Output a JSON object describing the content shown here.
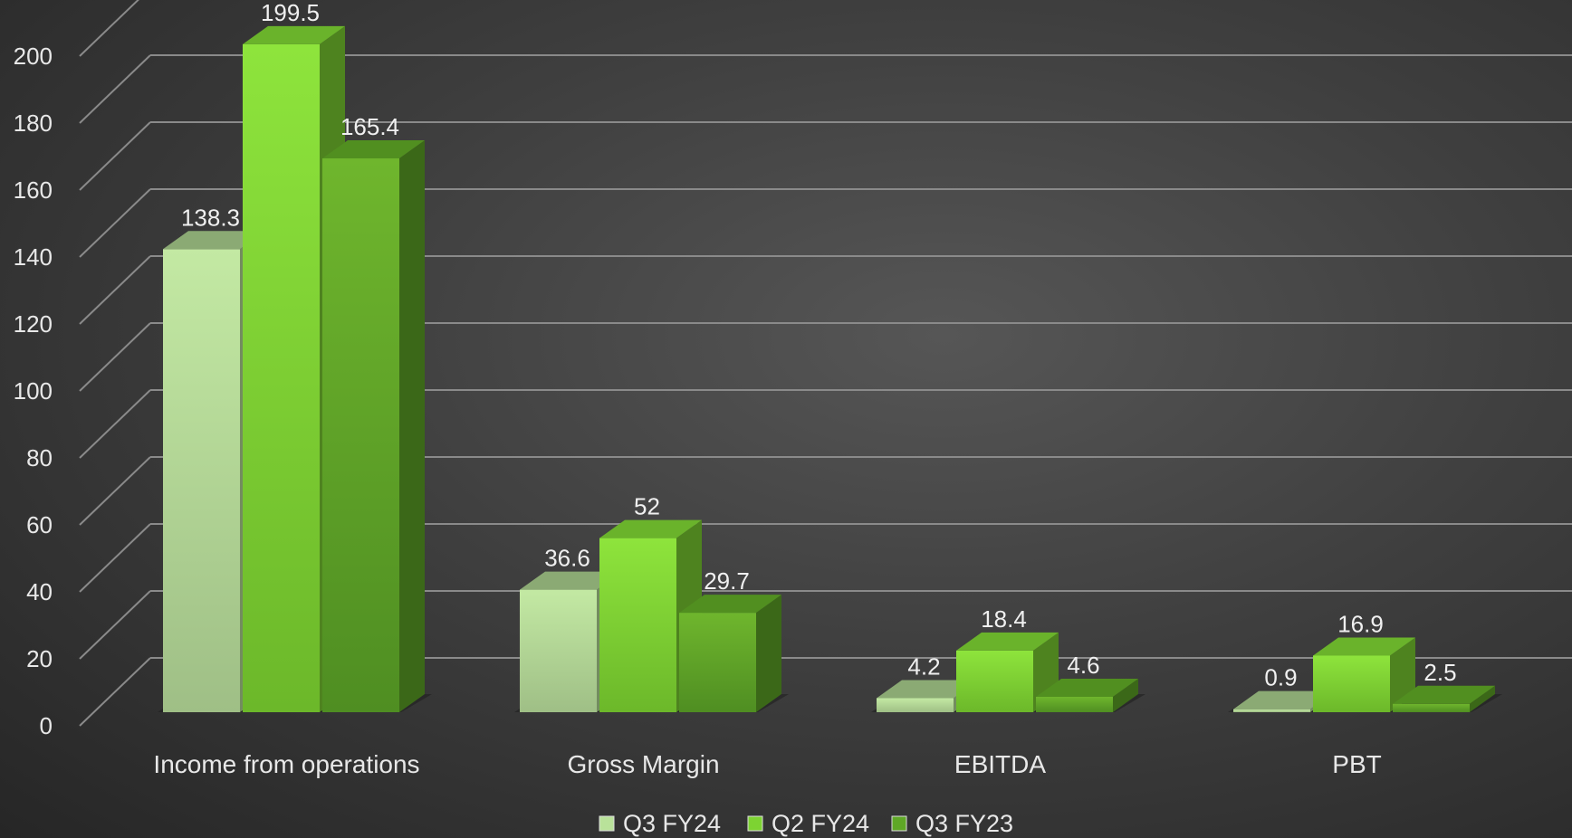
{
  "chart_data": {
    "type": "bar",
    "categories": [
      "Income from operations",
      "Gross Margin",
      "EBITDA",
      "PBT"
    ],
    "series": [
      {
        "name": "Q3 FY24",
        "values": [
          138.3,
          36.6,
          4.2,
          0.9
        ],
        "color": "#b9e29a"
      },
      {
        "name": "Q2 FY24",
        "values": [
          199.5,
          52,
          18.4,
          16.9
        ],
        "color": "#7dd332"
      },
      {
        "name": "Q3 FY23",
        "values": [
          165.4,
          29.7,
          4.6,
          2.5
        ],
        "color": "#5fa826"
      }
    ],
    "data_labels": [
      [
        "138.3",
        "36.6",
        "4.2",
        "0.9"
      ],
      [
        "199.5",
        "52",
        "18.4",
        "16.9"
      ],
      [
        "165.4",
        "29.7",
        "4.6",
        "2.5"
      ]
    ],
    "y_ticks": [
      "0",
      "20",
      "40",
      "60",
      "80",
      "100",
      "120",
      "140",
      "160",
      "180",
      "200"
    ],
    "ylim": [
      0,
      200
    ],
    "title": "",
    "xlabel": "",
    "ylabel": "",
    "grid": true,
    "legend_position": "bottom",
    "style": "3d-clustered-column",
    "colors": {
      "background": "#3f3f3f",
      "grid": "#8a8a8a",
      "text": "#e8e8e8"
    }
  }
}
